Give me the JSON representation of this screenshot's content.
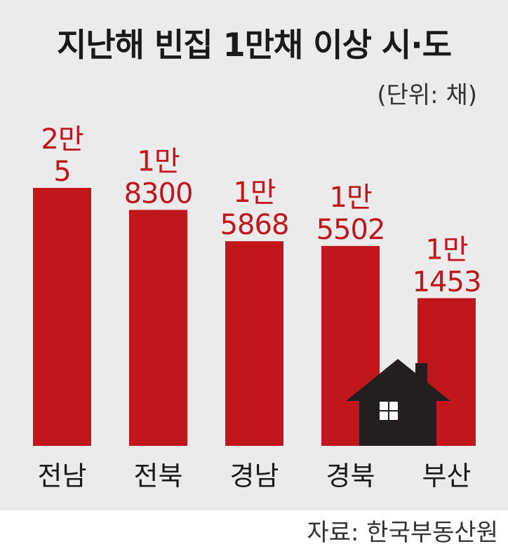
{
  "title": "지난해 빈집 1만채 이상 시·도",
  "unit": "(단위: 채)",
  "source": "자료: 한국부동산원",
  "colors": {
    "bar": "#c0161c",
    "house": "#231f20",
    "background": "#ebebeb"
  },
  "chart_data": {
    "type": "bar",
    "title": "지난해 빈집 1만채 이상 시·도",
    "unit": "(단위: 채)",
    "categories": [
      "전남",
      "전북",
      "경남",
      "경북",
      "부산"
    ],
    "values": [
      20005,
      18300,
      15868,
      15502,
      11453
    ],
    "value_labels": [
      [
        "2만",
        "5"
      ],
      [
        "1만",
        "8300"
      ],
      [
        "1만",
        "5868"
      ],
      [
        "1만",
        "5502"
      ],
      [
        "1만",
        "1453"
      ]
    ],
    "xlabel": "",
    "ylabel": "",
    "grid": false,
    "legend": "none"
  }
}
